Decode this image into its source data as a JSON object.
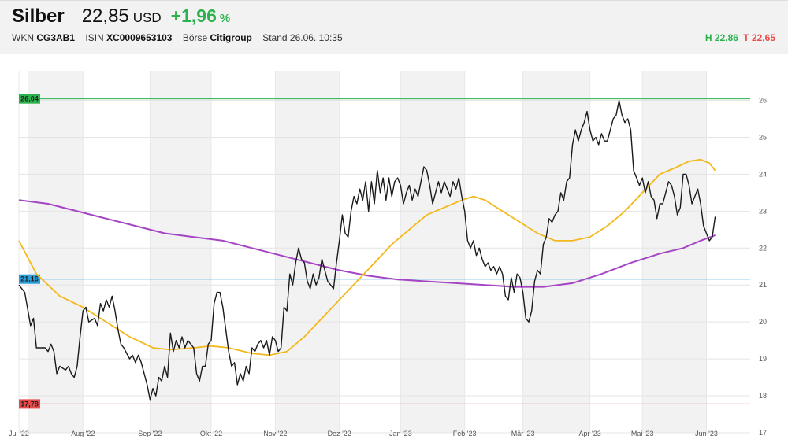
{
  "instrument": {
    "name": "Silber",
    "price": "22,85",
    "currency": "USD",
    "change": "+1,96",
    "change_unit": "%",
    "wkn_label": "WKN",
    "wkn": "CG3AB1",
    "isin_label": "ISIN",
    "isin": "XC0009653103",
    "exchange_label": "Börse",
    "exchange": "Citigroup",
    "timestamp": "Stand 26.06. 10:35",
    "high": "H 22,86",
    "low": "T 22,65"
  },
  "colors": {
    "price_line": "#1a1a1a",
    "ma_short": "#f2b81c",
    "ma_long": "#a545c4",
    "level_high": "#2bb24c",
    "level_mid": "#2a9fd8",
    "level_low": "#e84b4b",
    "band": "#f2f2f2"
  },
  "chart_data": {
    "type": "line",
    "ylim": [
      17,
      26.8
    ],
    "y_ticks": [
      17,
      18,
      19,
      20,
      21,
      22,
      23,
      24,
      25,
      26
    ],
    "x_ticks": [
      {
        "i": 0,
        "label": "Jul '22"
      },
      {
        "i": 22,
        "label": "Aug '22"
      },
      {
        "i": 45,
        "label": "Sep '22"
      },
      {
        "i": 66,
        "label": "Okt '22"
      },
      {
        "i": 88,
        "label": "Nov '22"
      },
      {
        "i": 110,
        "label": "Dez '22"
      },
      {
        "i": 131,
        "label": "Jan '23"
      },
      {
        "i": 153,
        "label": "Feb '23"
      },
      {
        "i": 173,
        "label": "Mär '23"
      },
      {
        "i": 196,
        "label": "Apr '23"
      },
      {
        "i": 214,
        "label": "Mai '23"
      },
      {
        "i": 236,
        "label": "Jun '23"
      }
    ],
    "levels": [
      {
        "value": 26.04,
        "label": "26,04",
        "color": "#2bb24c"
      },
      {
        "value": 21.16,
        "label": "21,16",
        "color": "#2a9fd8"
      },
      {
        "value": 17.78,
        "label": "17,78",
        "color": "#e84b4b"
      }
    ],
    "total_points": 252,
    "price": [
      [
        0,
        21.0
      ],
      [
        2,
        20.8
      ],
      [
        4,
        19.9
      ],
      [
        5,
        20.1
      ],
      [
        6,
        19.3
      ],
      [
        9,
        19.3
      ],
      [
        10,
        19.2
      ],
      [
        11,
        19.4
      ],
      [
        12,
        19.2
      ],
      [
        13,
        18.6
      ],
      [
        14,
        18.8
      ],
      [
        16,
        18.7
      ],
      [
        17,
        18.8
      ],
      [
        18,
        18.6
      ],
      [
        19,
        18.5
      ],
      [
        20,
        18.8
      ],
      [
        21,
        19.6
      ],
      [
        22,
        20.3
      ],
      [
        23,
        20.4
      ],
      [
        24,
        20.0
      ],
      [
        26,
        20.1
      ],
      [
        27,
        19.9
      ],
      [
        28,
        20.5
      ],
      [
        29,
        20.3
      ],
      [
        30,
        20.6
      ],
      [
        31,
        20.4
      ],
      [
        32,
        20.7
      ],
      [
        33,
        20.3
      ],
      [
        34,
        19.8
      ],
      [
        35,
        19.4
      ],
      [
        36,
        19.3
      ],
      [
        38,
        19.0
      ],
      [
        39,
        19.1
      ],
      [
        40,
        18.9
      ],
      [
        41,
        19.1
      ],
      [
        42,
        18.9
      ],
      [
        44,
        18.3
      ],
      [
        45,
        17.9
      ],
      [
        46,
        18.2
      ],
      [
        47,
        18.0
      ],
      [
        48,
        18.5
      ],
      [
        49,
        18.4
      ],
      [
        50,
        18.8
      ],
      [
        51,
        18.5
      ],
      [
        52,
        19.7
      ],
      [
        53,
        19.2
      ],
      [
        54,
        19.5
      ],
      [
        55,
        19.3
      ],
      [
        56,
        19.6
      ],
      [
        57,
        19.3
      ],
      [
        58,
        19.5
      ],
      [
        59,
        19.4
      ],
      [
        60,
        19.3
      ],
      [
        61,
        18.6
      ],
      [
        62,
        18.4
      ],
      [
        63,
        18.8
      ],
      [
        64,
        18.8
      ],
      [
        65,
        19.4
      ],
      [
        66,
        19.5
      ],
      [
        67,
        20.5
      ],
      [
        68,
        20.8
      ],
      [
        69,
        20.8
      ],
      [
        70,
        20.4
      ],
      [
        71,
        19.8
      ],
      [
        72,
        19.2
      ],
      [
        73,
        18.8
      ],
      [
        74,
        18.9
      ],
      [
        75,
        18.3
      ],
      [
        76,
        18.6
      ],
      [
        77,
        18.4
      ],
      [
        78,
        18.8
      ],
      [
        79,
        18.6
      ],
      [
        80,
        19.3
      ],
      [
        81,
        19.2
      ],
      [
        82,
        19.4
      ],
      [
        83,
        19.5
      ],
      [
        84,
        19.3
      ],
      [
        85,
        19.5
      ],
      [
        86,
        19.1
      ],
      [
        87,
        19.6
      ],
      [
        88,
        19.5
      ],
      [
        89,
        19.2
      ],
      [
        90,
        19.3
      ],
      [
        91,
        20.4
      ],
      [
        92,
        20.3
      ],
      [
        93,
        21.3
      ],
      [
        94,
        21.0
      ],
      [
        95,
        21.6
      ],
      [
        96,
        22.0
      ],
      [
        97,
        21.7
      ],
      [
        98,
        21.6
      ],
      [
        99,
        21.1
      ],
      [
        100,
        20.9
      ],
      [
        101,
        21.3
      ],
      [
        102,
        21.0
      ],
      [
        103,
        21.2
      ],
      [
        104,
        21.7
      ],
      [
        105,
        21.4
      ],
      [
        106,
        21.1
      ],
      [
        107,
        21.0
      ],
      [
        108,
        20.9
      ],
      [
        109,
        21.6
      ],
      [
        110,
        22.2
      ],
      [
        111,
        22.9
      ],
      [
        112,
        22.4
      ],
      [
        113,
        22.3
      ],
      [
        114,
        23.0
      ],
      [
        115,
        23.4
      ],
      [
        116,
        23.2
      ],
      [
        117,
        23.6
      ],
      [
        118,
        23.3
      ],
      [
        119,
        23.8
      ],
      [
        120,
        23.0
      ],
      [
        121,
        23.8
      ],
      [
        122,
        23.2
      ],
      [
        123,
        24.1
      ],
      [
        124,
        23.5
      ],
      [
        125,
        23.9
      ],
      [
        126,
        23.3
      ],
      [
        127,
        23.9
      ],
      [
        128,
        23.4
      ],
      [
        129,
        23.8
      ],
      [
        130,
        23.9
      ],
      [
        131,
        23.7
      ],
      [
        132,
        23.2
      ],
      [
        133,
        23.5
      ],
      [
        134,
        23.7
      ],
      [
        135,
        23.3
      ],
      [
        136,
        23.6
      ],
      [
        137,
        23.4
      ],
      [
        138,
        23.8
      ],
      [
        139,
        24.2
      ],
      [
        140,
        24.1
      ],
      [
        141,
        23.7
      ],
      [
        142,
        23.2
      ],
      [
        143,
        23.5
      ],
      [
        144,
        23.8
      ],
      [
        145,
        23.5
      ],
      [
        146,
        23.8
      ],
      [
        147,
        23.6
      ],
      [
        148,
        23.4
      ],
      [
        149,
        23.8
      ],
      [
        150,
        23.6
      ],
      [
        151,
        23.9
      ],
      [
        152,
        23.4
      ],
      [
        153,
        23.0
      ],
      [
        154,
        22.2
      ],
      [
        155,
        22.0
      ],
      [
        156,
        22.2
      ],
      [
        157,
        21.8
      ],
      [
        158,
        22.0
      ],
      [
        159,
        21.7
      ],
      [
        160,
        21.5
      ],
      [
        161,
        21.6
      ],
      [
        162,
        21.4
      ],
      [
        163,
        21.5
      ],
      [
        164,
        21.3
      ],
      [
        165,
        21.5
      ],
      [
        166,
        21.3
      ],
      [
        167,
        20.7
      ],
      [
        168,
        20.6
      ],
      [
        169,
        21.2
      ],
      [
        170,
        20.8
      ],
      [
        171,
        21.3
      ],
      [
        172,
        21.2
      ],
      [
        173,
        20.8
      ],
      [
        174,
        20.1
      ],
      [
        175,
        20.0
      ],
      [
        176,
        20.3
      ],
      [
        177,
        21.1
      ],
      [
        178,
        21.4
      ],
      [
        179,
        21.3
      ],
      [
        180,
        22.1
      ],
      [
        181,
        22.3
      ],
      [
        182,
        22.8
      ],
      [
        183,
        22.7
      ],
      [
        184,
        22.9
      ],
      [
        185,
        23.0
      ],
      [
        186,
        23.5
      ],
      [
        187,
        23.3
      ],
      [
        188,
        23.8
      ],
      [
        189,
        23.9
      ],
      [
        190,
        24.8
      ],
      [
        191,
        25.2
      ],
      [
        192,
        24.9
      ],
      [
        193,
        25.2
      ],
      [
        194,
        25.4
      ],
      [
        195,
        25.7
      ],
      [
        196,
        25.2
      ],
      [
        197,
        24.9
      ],
      [
        198,
        25.0
      ],
      [
        199,
        24.8
      ],
      [
        200,
        25.1
      ],
      [
        201,
        24.9
      ],
      [
        202,
        24.9
      ],
      [
        203,
        25.2
      ],
      [
        204,
        25.5
      ],
      [
        205,
        25.6
      ],
      [
        206,
        26.0
      ],
      [
        207,
        25.6
      ],
      [
        208,
        25.4
      ],
      [
        209,
        25.5
      ],
      [
        210,
        25.2
      ],
      [
        211,
        24.1
      ],
      [
        212,
        23.9
      ],
      [
        213,
        23.7
      ],
      [
        214,
        23.9
      ],
      [
        215,
        23.5
      ],
      [
        216,
        23.8
      ],
      [
        217,
        23.4
      ],
      [
        218,
        23.3
      ],
      [
        219,
        22.8
      ],
      [
        220,
        23.2
      ],
      [
        221,
        23.2
      ],
      [
        222,
        23.5
      ],
      [
        223,
        23.8
      ],
      [
        224,
        23.7
      ],
      [
        225,
        23.4
      ],
      [
        226,
        22.9
      ],
      [
        227,
        23.1
      ],
      [
        228,
        24.0
      ],
      [
        229,
        24.0
      ],
      [
        230,
        23.7
      ],
      [
        231,
        23.2
      ],
      [
        232,
        23.4
      ],
      [
        233,
        23.6
      ],
      [
        234,
        23.2
      ],
      [
        235,
        22.6
      ],
      [
        236,
        22.4
      ],
      [
        237,
        22.2
      ],
      [
        238,
        22.3
      ],
      [
        239,
        22.85
      ]
    ],
    "ma_short": [
      [
        0,
        22.2
      ],
      [
        6,
        21.3
      ],
      [
        14,
        20.7
      ],
      [
        22,
        20.4
      ],
      [
        30,
        20.0
      ],
      [
        38,
        19.6
      ],
      [
        46,
        19.3
      ],
      [
        52,
        19.25
      ],
      [
        60,
        19.3
      ],
      [
        66,
        19.35
      ],
      [
        72,
        19.3
      ],
      [
        80,
        19.15
      ],
      [
        86,
        19.1
      ],
      [
        92,
        19.2
      ],
      [
        98,
        19.6
      ],
      [
        104,
        20.1
      ],
      [
        110,
        20.6
      ],
      [
        116,
        21.1
      ],
      [
        122,
        21.6
      ],
      [
        128,
        22.1
      ],
      [
        134,
        22.5
      ],
      [
        140,
        22.9
      ],
      [
        146,
        23.1
      ],
      [
        152,
        23.3
      ],
      [
        156,
        23.4
      ],
      [
        160,
        23.3
      ],
      [
        166,
        23.0
      ],
      [
        172,
        22.7
      ],
      [
        178,
        22.4
      ],
      [
        184,
        22.2
      ],
      [
        190,
        22.2
      ],
      [
        196,
        22.3
      ],
      [
        202,
        22.6
      ],
      [
        208,
        23.0
      ],
      [
        214,
        23.5
      ],
      [
        220,
        24.0
      ],
      [
        226,
        24.2
      ],
      [
        230,
        24.35
      ],
      [
        234,
        24.4
      ],
      [
        237,
        24.3
      ],
      [
        239,
        24.1
      ]
    ],
    "ma_long": [
      [
        0,
        23.3
      ],
      [
        10,
        23.2
      ],
      [
        20,
        23.0
      ],
      [
        30,
        22.8
      ],
      [
        40,
        22.6
      ],
      [
        50,
        22.4
      ],
      [
        60,
        22.3
      ],
      [
        70,
        22.2
      ],
      [
        80,
        22.0
      ],
      [
        90,
        21.8
      ],
      [
        100,
        21.6
      ],
      [
        110,
        21.4
      ],
      [
        120,
        21.25
      ],
      [
        130,
        21.15
      ],
      [
        140,
        21.1
      ],
      [
        150,
        21.05
      ],
      [
        160,
        21.0
      ],
      [
        170,
        20.95
      ],
      [
        180,
        20.95
      ],
      [
        190,
        21.05
      ],
      [
        200,
        21.3
      ],
      [
        210,
        21.6
      ],
      [
        220,
        21.85
      ],
      [
        228,
        22.0
      ],
      [
        234,
        22.2
      ],
      [
        239,
        22.35
      ]
    ]
  }
}
